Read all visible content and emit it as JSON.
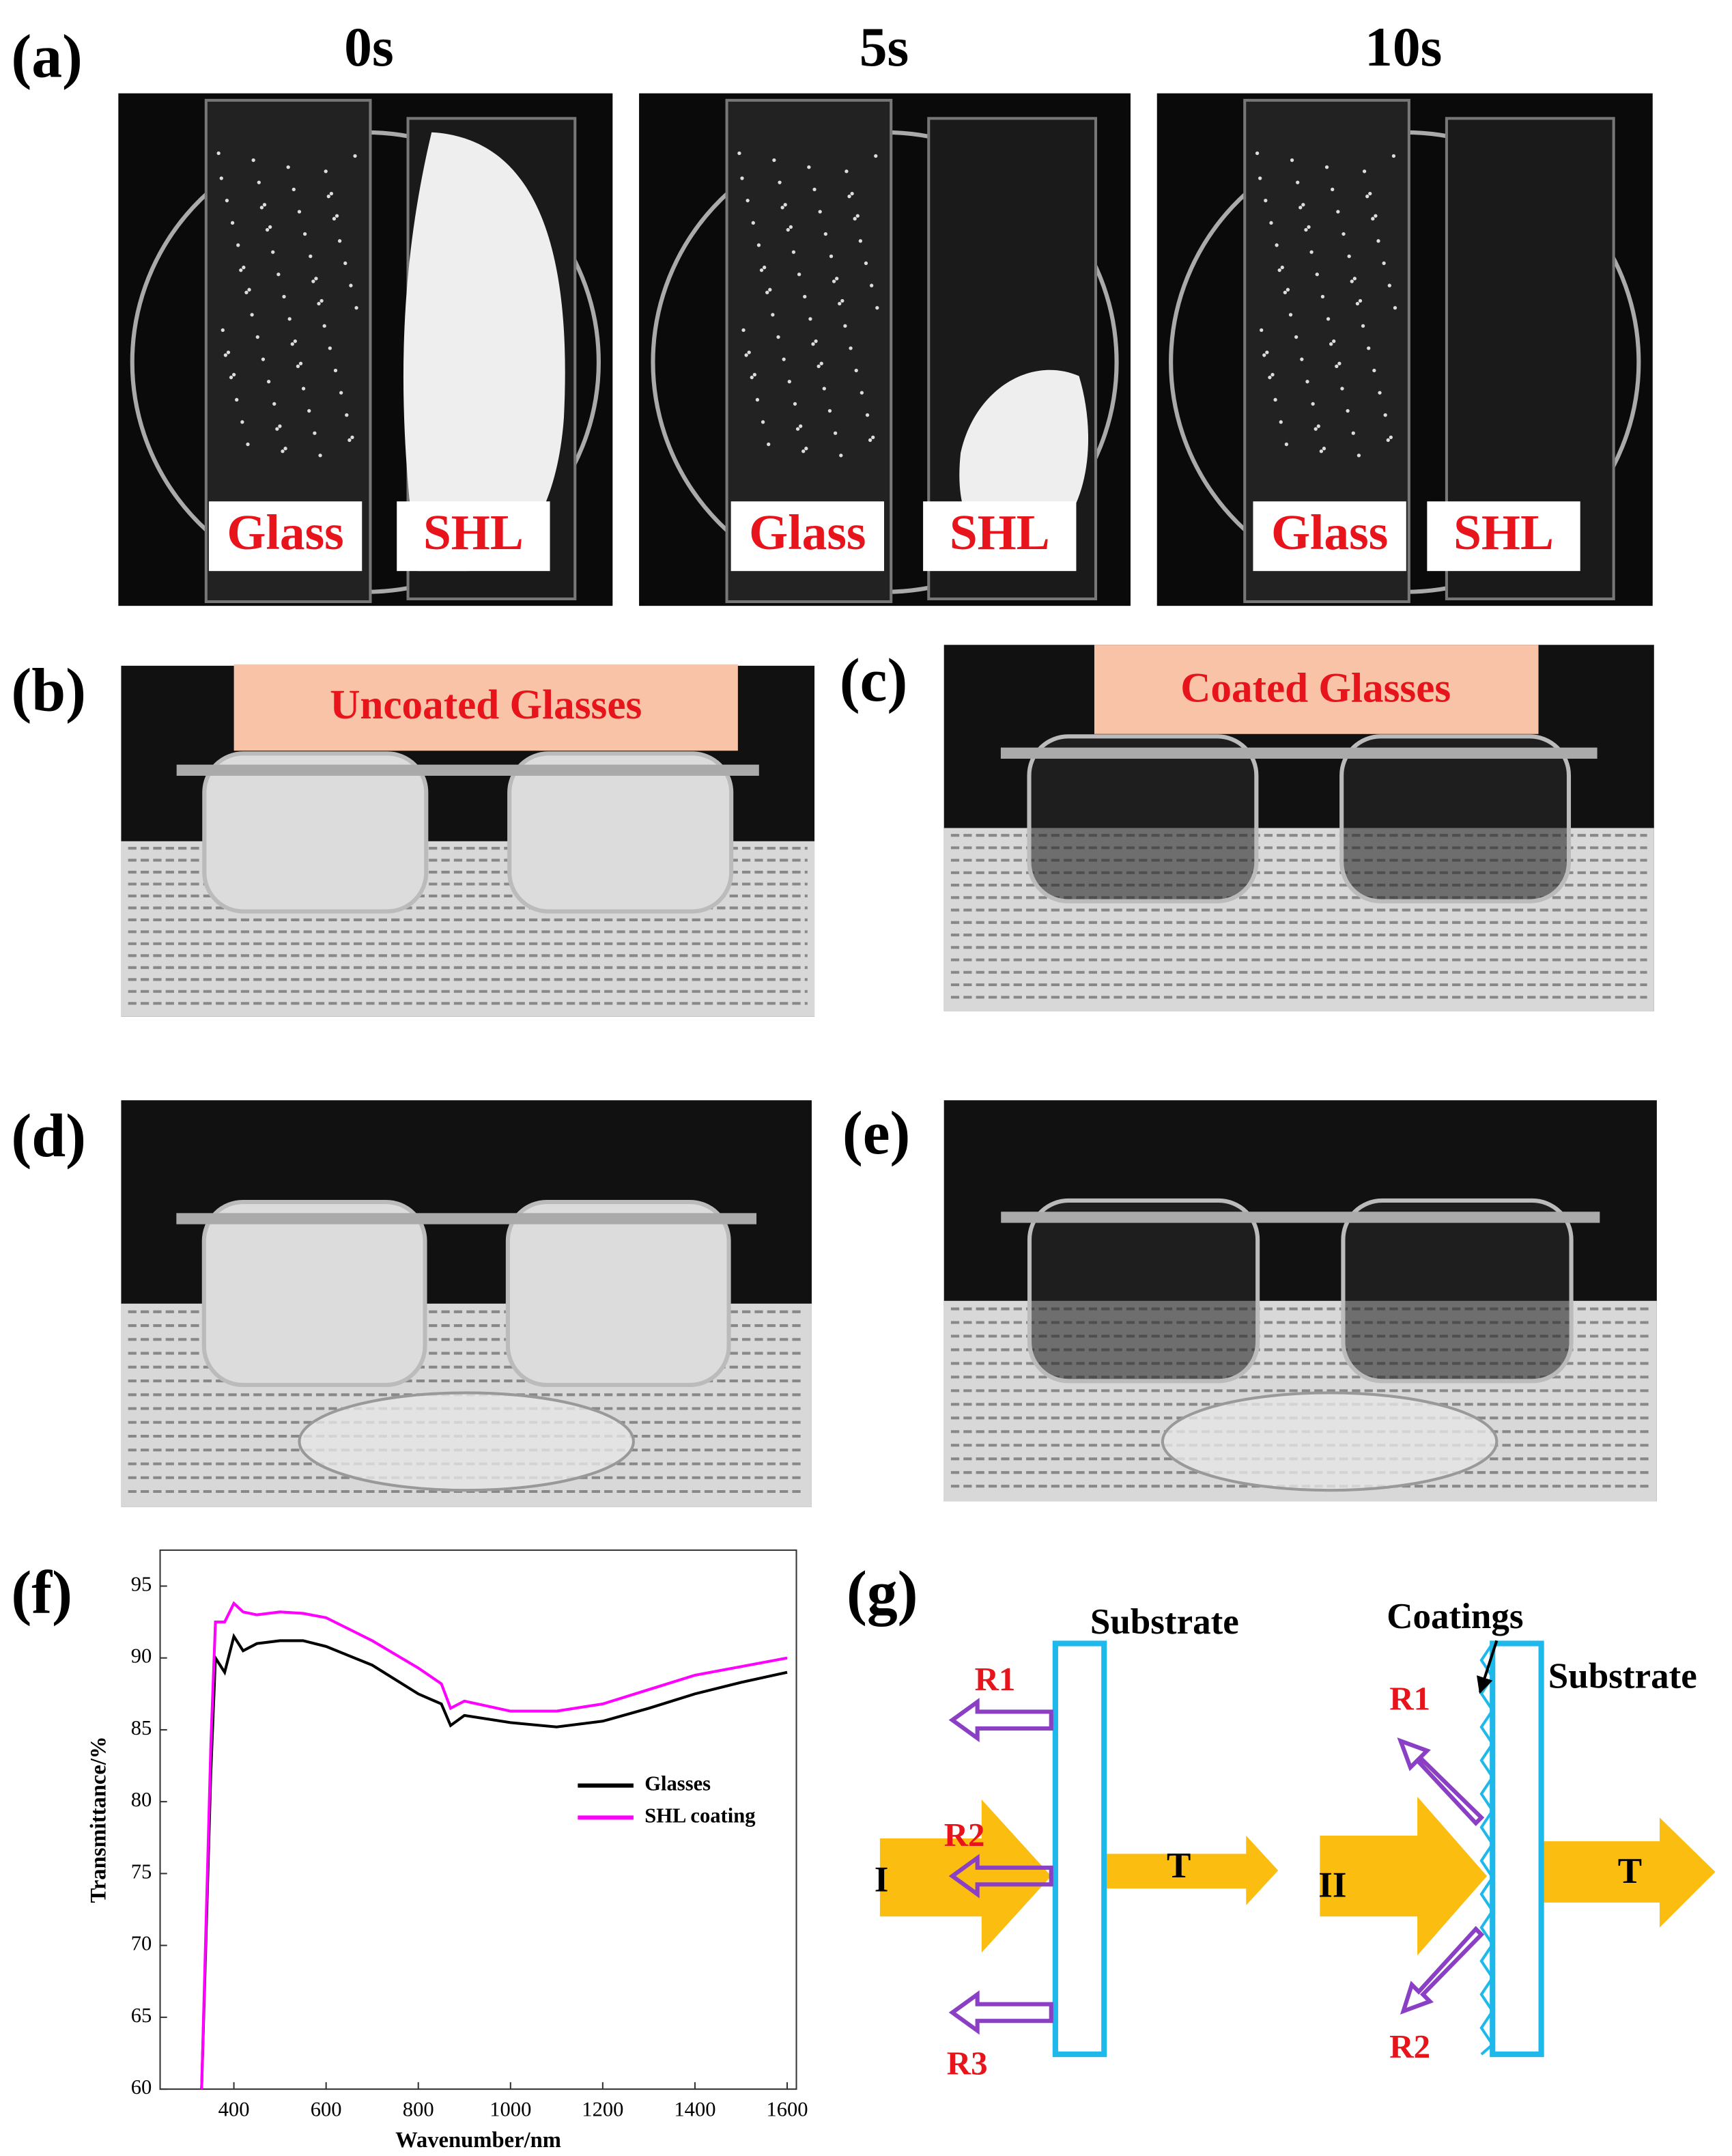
{
  "panel_a": {
    "label": "(a)",
    "times": [
      "0s",
      "5s",
      "10s"
    ],
    "tags": [
      "Glass",
      "SHL"
    ]
  },
  "panel_b": {
    "label": "(b)",
    "caption": "Uncoated Glasses"
  },
  "panel_c": {
    "label": "(c)",
    "caption": "Coated Glasses"
  },
  "panel_d": {
    "label": "(d)"
  },
  "panel_e": {
    "label": "(e)"
  },
  "panel_f": {
    "label": "(f)"
  },
  "chart_data": {
    "type": "line",
    "x_label": "Wavenumber/nm",
    "y_label": "Transmittance/%",
    "x": [
      330,
      350,
      360,
      380,
      400,
      420,
      450,
      500,
      550,
      600,
      700,
      800,
      850,
      870,
      900,
      1000,
      1100,
      1200,
      1300,
      1400,
      1500,
      1600
    ],
    "series": [
      {
        "name": "Glasses",
        "color": "#000000",
        "values": [
          60,
          82,
          90,
          89,
          91.5,
          90.5,
          91,
          91.2,
          91.2,
          90.8,
          89.5,
          87.5,
          86.8,
          85.3,
          86,
          85.5,
          85.2,
          85.6,
          86.5,
          87.5,
          88.3,
          89
        ]
      },
      {
        "name": "SHL coating",
        "color": "#ff00ff",
        "values": [
          60,
          84,
          92.5,
          92.5,
          93.8,
          93.2,
          93,
          93.2,
          93.1,
          92.8,
          91.2,
          89.3,
          88.2,
          86.5,
          87,
          86.3,
          86.3,
          86.8,
          87.8,
          88.8,
          89.4,
          90
        ]
      }
    ],
    "xlim": [
      240,
      1620
    ],
    "ylim": [
      60,
      97.5
    ],
    "xticks": [
      400,
      600,
      800,
      1000,
      1200,
      1400,
      1600
    ],
    "yticks": [
      60,
      65,
      70,
      75,
      80,
      85,
      90,
      95
    ]
  },
  "diagram_g": {
    "label": "(g)",
    "left": {
      "substrate": "Substrate",
      "incident": "I",
      "transmitted": "T",
      "reflections": [
        "R1",
        "R2",
        "R3"
      ]
    },
    "right": {
      "coatings": "Coatings",
      "substrate": "Substrate",
      "incident": "II",
      "transmitted": "T",
      "reflections": [
        "R1",
        "R2"
      ]
    }
  }
}
